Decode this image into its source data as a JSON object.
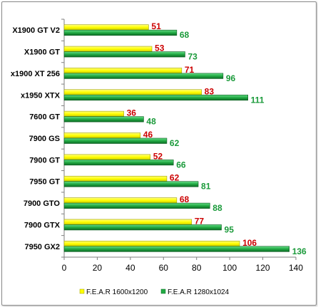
{
  "chart_data": {
    "type": "bar",
    "orientation": "horizontal",
    "title": "",
    "xlabel": "",
    "ylabel": "",
    "categories": [
      "X1900 GT V2",
      "X1900 GT",
      "x1900 XT 256",
      "x1950 XTX",
      "7600 GT",
      "7900 GS",
      "7900 GT",
      "7950 GT",
      "7900 GTO",
      "7900 GTX",
      "7950 GX2"
    ],
    "series": [
      {
        "name": "F.E.A.R 1600x1200",
        "values": [
          51,
          53,
          71,
          83,
          36,
          46,
          52,
          62,
          68,
          77,
          106
        ],
        "color": "#ffff00",
        "label_color": "#cc0000"
      },
      {
        "name": "F.E.A.R 1280x1024",
        "values": [
          68,
          73,
          96,
          111,
          48,
          62,
          66,
          81,
          88,
          95,
          136
        ],
        "color": "#22aa44",
        "label_color": "#1a9a3a"
      }
    ],
    "xlim": [
      0,
      140
    ],
    "xticks": [
      0,
      20,
      40,
      60,
      80,
      100,
      120,
      140
    ],
    "grid": false,
    "legend": "bottom"
  }
}
